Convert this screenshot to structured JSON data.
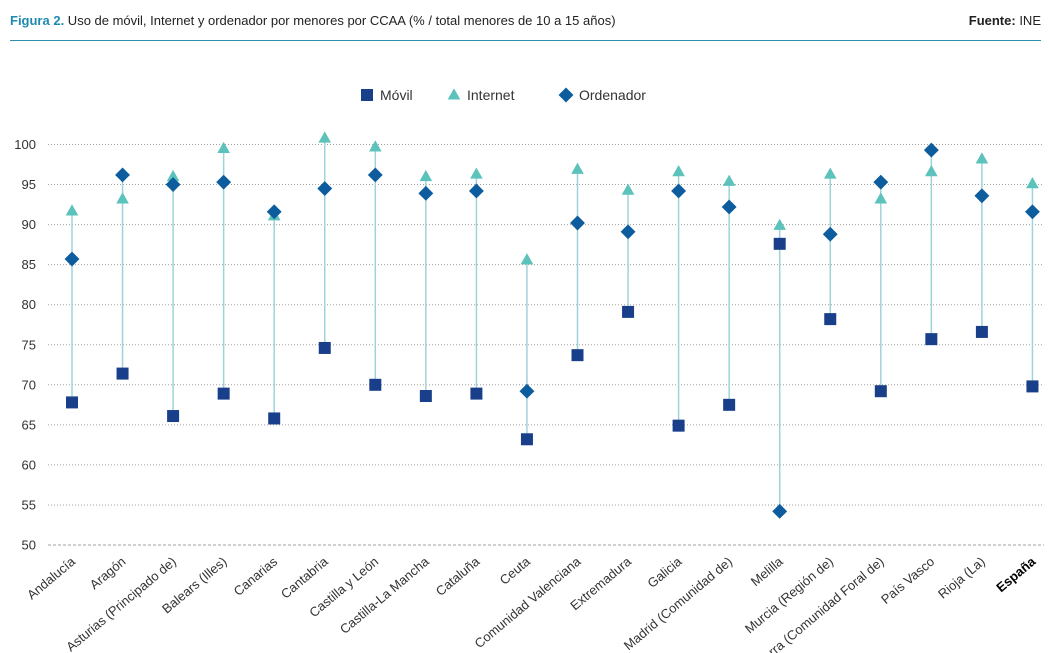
{
  "header": {
    "figure_label": "Figura 2.",
    "title": " Uso de móvil, Internet y ordenador por menores por CCAA (% / total menores de 10 a 15 años)",
    "source_label": "Fuente:",
    "source_value": " INE"
  },
  "colors": {
    "movil": "#1a3f8a",
    "internet": "#5cc2bc",
    "ordenador": "#0d5c9e",
    "connector": "#9fd3da",
    "grid": "#a0a0a0",
    "header_rule": "#2a8fa8"
  },
  "chart_data": {
    "type": "scatter",
    "title": "Uso de móvil, Internet y ordenador por menores por CCAA (% / total menores de 10 a 15 años)",
    "xlabel": "",
    "ylabel": "",
    "ylim": [
      50,
      100
    ],
    "yticks": [
      50,
      55,
      60,
      65,
      70,
      75,
      80,
      85,
      90,
      95,
      100
    ],
    "grid": true,
    "legend_position": "top-center",
    "categories": [
      "Andalucía",
      "Aragón",
      "Asturias (Principado de)",
      "Balears (Illes)",
      "Canarias",
      "Cantabria",
      "Castilla y León",
      "Castilla-La Mancha",
      "Cataluña",
      "Ceuta",
      "Comunidad Valenciana",
      "Extremadura",
      "Galicia",
      "Madrid (Comunidad de)",
      "Melilla",
      "Murcia (Región de)",
      "Navarra (Comunidad Foral de)",
      "País Vasco",
      "Rioja (La)",
      "España"
    ],
    "bold_categories": [
      "España"
    ],
    "series": [
      {
        "name": "Móvil",
        "marker": "square",
        "values": [
          67.8,
          71.4,
          66.1,
          68.9,
          65.8,
          74.6,
          70.0,
          68.6,
          68.9,
          63.2,
          73.7,
          79.1,
          64.9,
          67.5,
          87.6,
          78.2,
          69.2,
          75.7,
          76.6,
          69.8
        ]
      },
      {
        "name": "Internet",
        "marker": "triangle",
        "values": [
          91.7,
          93.2,
          96.0,
          99.5,
          91.1,
          100.8,
          99.7,
          96.0,
          96.3,
          85.6,
          96.9,
          94.3,
          96.6,
          95.4,
          89.9,
          96.3,
          93.2,
          96.6,
          98.2,
          95.1
        ]
      },
      {
        "name": "Ordenador",
        "marker": "diamond",
        "values": [
          85.7,
          96.2,
          95.0,
          95.3,
          91.6,
          94.5,
          96.2,
          93.9,
          94.2,
          69.2,
          90.2,
          89.1,
          94.2,
          92.2,
          54.2,
          88.8,
          95.3,
          99.3,
          93.6,
          91.6
        ]
      }
    ]
  }
}
